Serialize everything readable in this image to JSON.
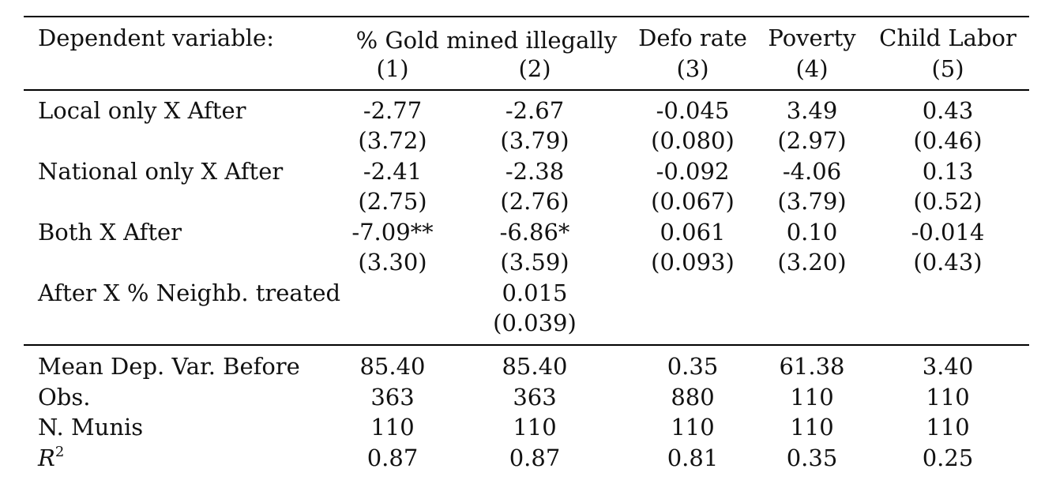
{
  "header": {
    "row_label": "Dependent variable:",
    "group_label": "% Gold mined illegally",
    "columns": [
      {
        "title": "",
        "num": "(1)"
      },
      {
        "title": "",
        "num": "(2)"
      },
      {
        "title": "Defo rate",
        "num": "(3)"
      },
      {
        "title": "Poverty",
        "num": "(4)"
      },
      {
        "title": "Child Labor",
        "num": "(5)"
      }
    ]
  },
  "coef_rows": [
    {
      "label": "Local only X After",
      "values": [
        "-2.77",
        "-2.67",
        "-0.045",
        "3.49",
        "0.43"
      ],
      "ses": [
        "(3.72)",
        "(3.79)",
        "(0.080)",
        "(2.97)",
        "(0.46)"
      ]
    },
    {
      "label": "National only X After",
      "values": [
        "-2.41",
        "-2.38",
        "-0.092",
        "-4.06",
        "0.13"
      ],
      "ses": [
        "(2.75)",
        "(2.76)",
        "(0.067)",
        "(3.79)",
        "(0.52)"
      ]
    },
    {
      "label": "Both X After",
      "values": [
        "-7.09**",
        "-6.86*",
        "0.061",
        "0.10",
        "-0.014"
      ],
      "ses": [
        "(3.30)",
        "(3.59)",
        "(0.093)",
        "(3.20)",
        "(0.43)"
      ]
    },
    {
      "label": "After X % Neighb. treated",
      "values": [
        "",
        "0.015",
        "",
        "",
        ""
      ],
      "ses": [
        "",
        "(0.039)",
        "",
        "",
        ""
      ]
    }
  ],
  "stat_rows": [
    {
      "label": "Mean Dep. Var. Before",
      "values": [
        "85.40",
        "85.40",
        "0.35",
        "61.38",
        "3.40"
      ]
    },
    {
      "label": "Obs.",
      "values": [
        "363",
        "363",
        "880",
        "110",
        "110"
      ]
    },
    {
      "label": "N. Munis",
      "values": [
        "110",
        "110",
        "110",
        "110",
        "110"
      ]
    }
  ],
  "r2_row": {
    "label_base": "R",
    "label_sup": "2",
    "values": [
      "0.87",
      "0.87",
      "0.81",
      "0.35",
      "0.25"
    ]
  }
}
